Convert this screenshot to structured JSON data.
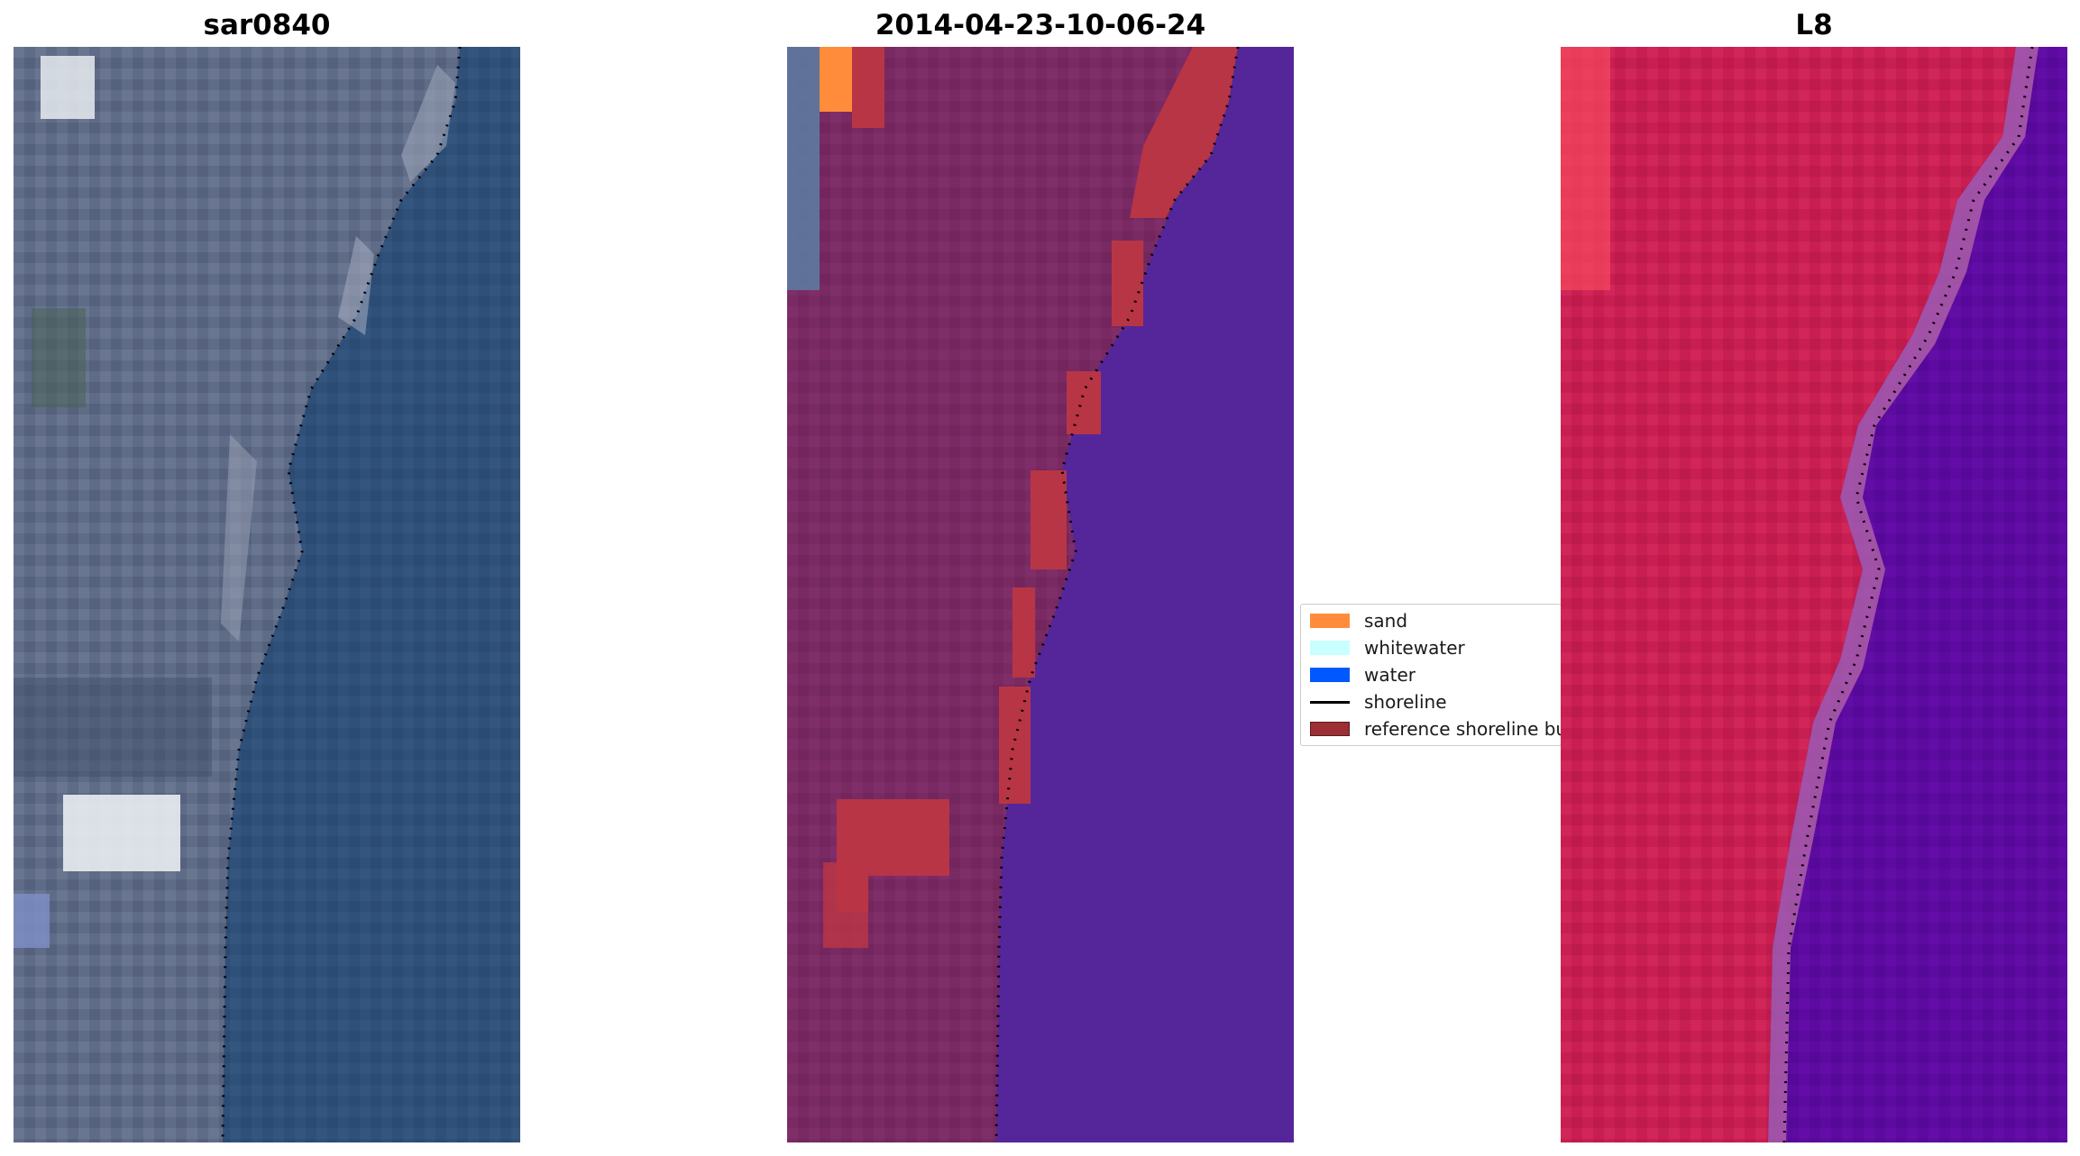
{
  "panels": [
    {
      "title": "sar0840"
    },
    {
      "title": "2014-04-23-10-06-24"
    },
    {
      "title": "L8"
    }
  ],
  "legend": {
    "items": [
      {
        "label": "sand",
        "color": "#ff8c3b"
      },
      {
        "label": "whitewater",
        "color": "#c8ffff"
      },
      {
        "label": "water",
        "color": "#0059ff"
      },
      {
        "label": "shoreline",
        "color": "#000000"
      },
      {
        "label": "reference shoreline buffer",
        "color": "#9b2f35"
      }
    ]
  },
  "colors": {
    "rgb_water": "#2e4f78",
    "rgb_land": "#5d6a86",
    "class_land": "#7a2a63",
    "class_water": "#55269a",
    "class_sand": "#ff8c3b",
    "class_buffer": "#b83545",
    "falsecolor_land": "#c81e52",
    "falsecolor_water": "#5c0aa0"
  }
}
